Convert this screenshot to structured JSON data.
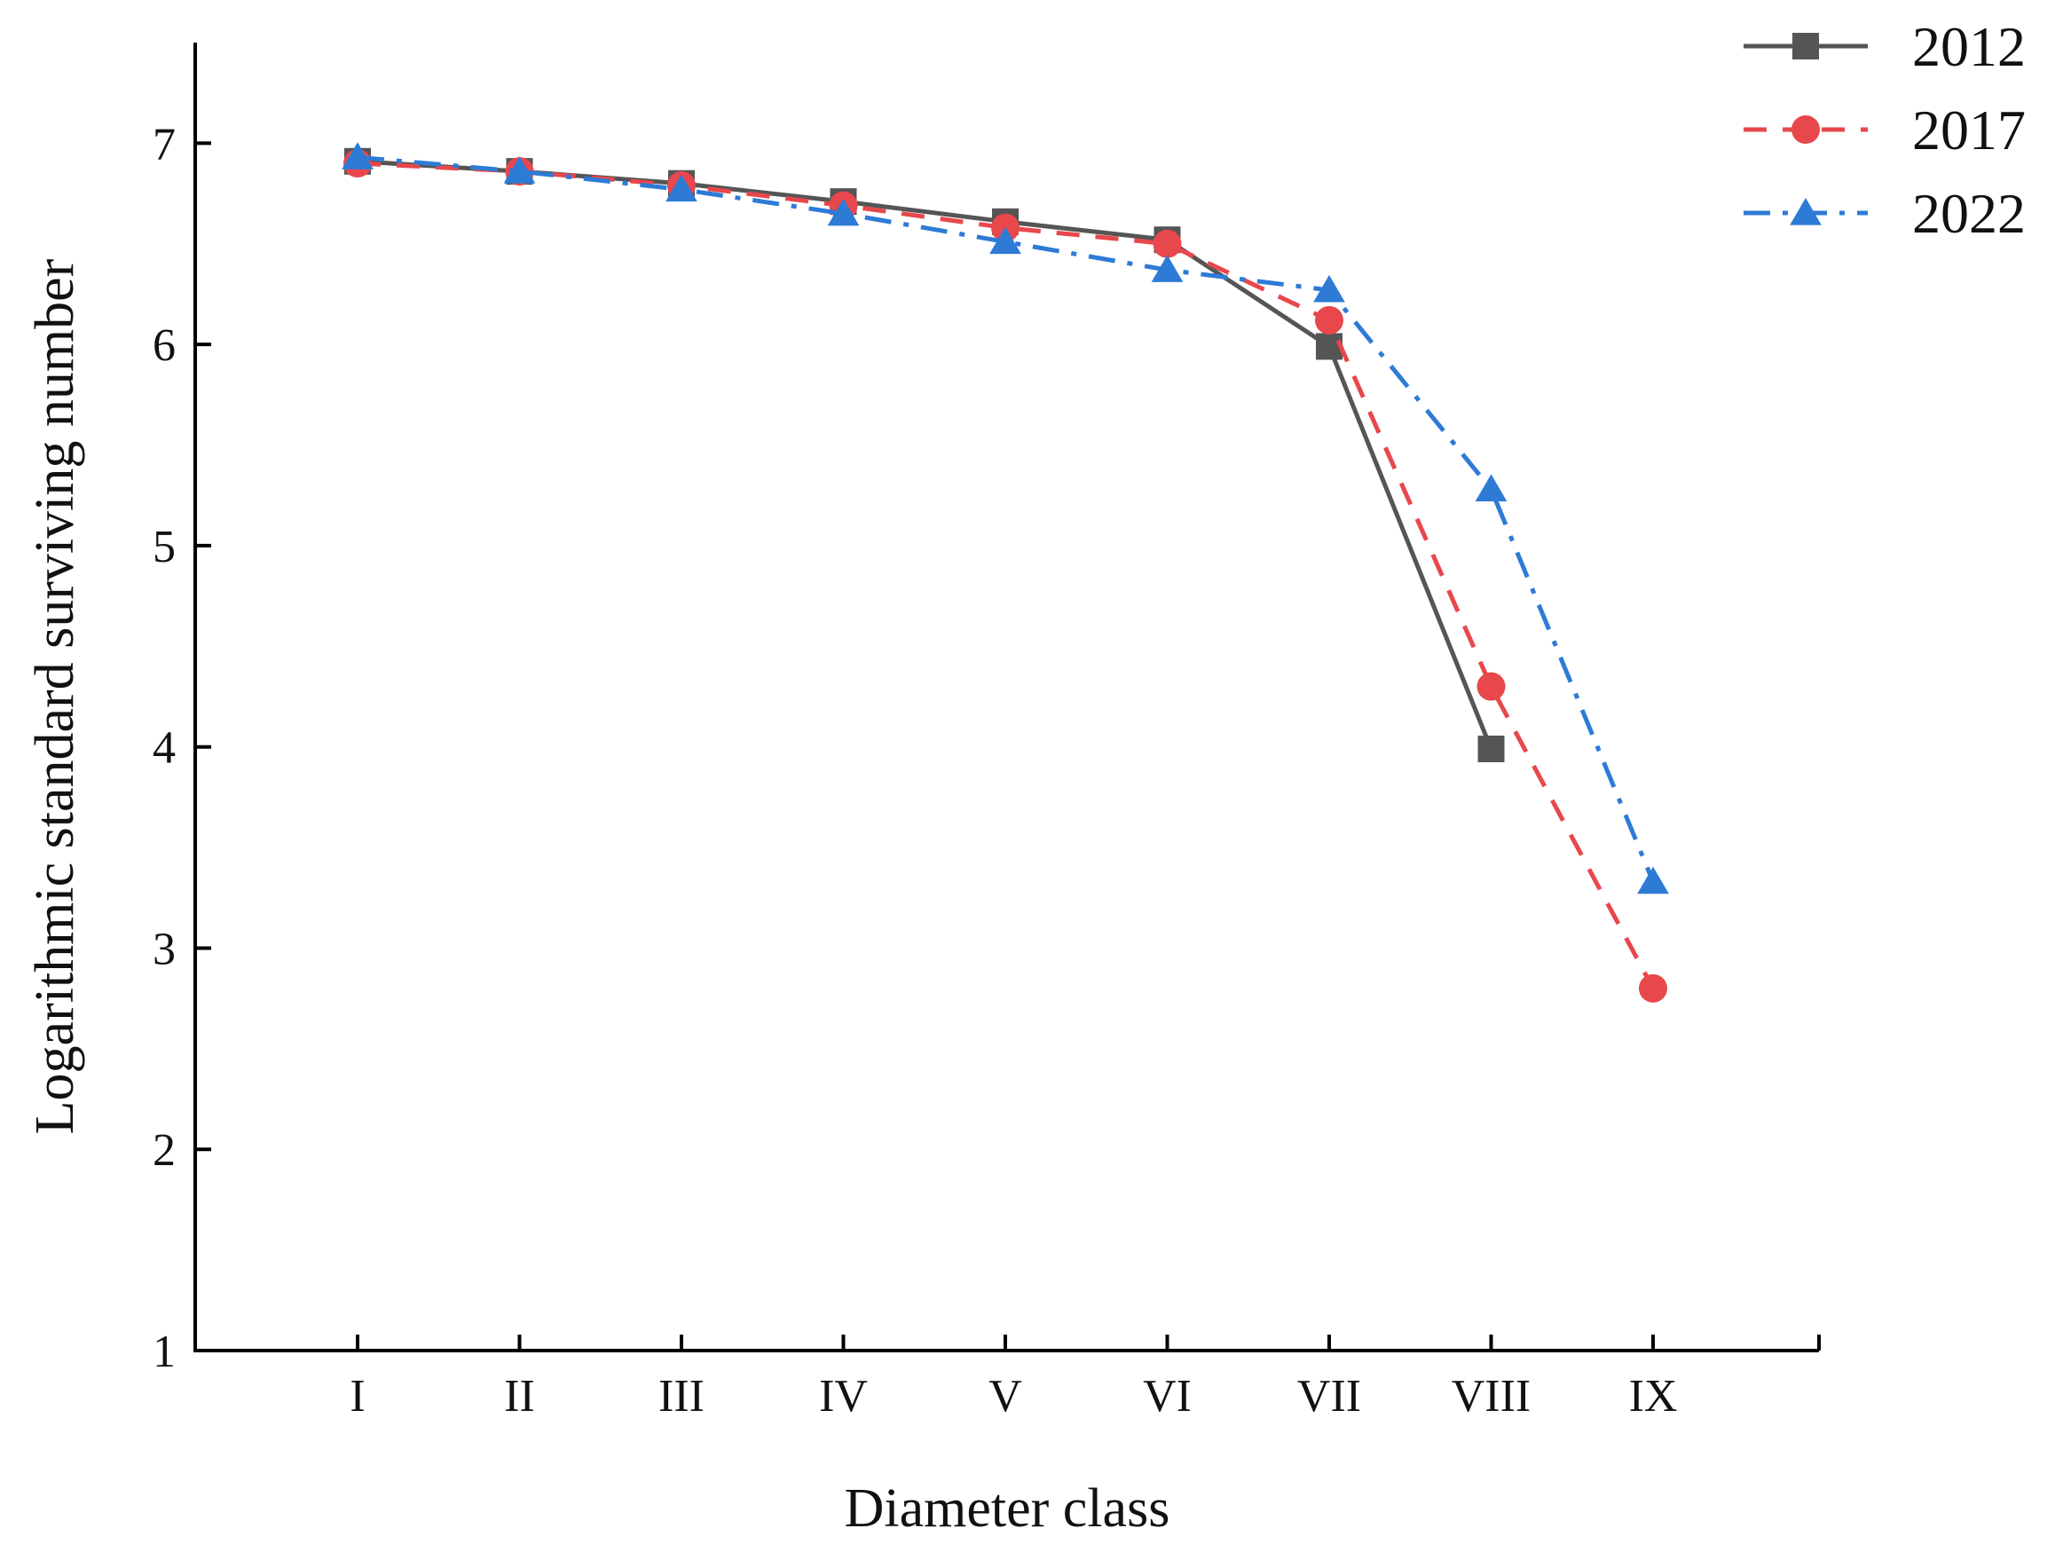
{
  "chart_data": {
    "type": "line",
    "title": "",
    "xlabel": "Diameter class",
    "ylabel": "Logarithmic standard surviving number",
    "categories": [
      "I",
      "II",
      "III",
      "IV",
      "V",
      "VI",
      "VII",
      "VIII",
      "IX"
    ],
    "ylim": [
      1,
      7.5
    ],
    "yticks": [
      1,
      2,
      3,
      4,
      5,
      6,
      7
    ],
    "grid": false,
    "legend_position": "top-right",
    "series": [
      {
        "name": "2012",
        "color": "#555555",
        "dash": "solid",
        "marker": "square",
        "values": [
          6.91,
          6.86,
          6.8,
          6.71,
          6.61,
          6.52,
          5.99,
          3.99,
          null
        ]
      },
      {
        "name": "2017",
        "color": "#e8474c",
        "dash": "dash",
        "marker": "circle",
        "values": [
          6.9,
          6.86,
          6.79,
          6.69,
          6.58,
          6.5,
          6.12,
          4.3,
          2.8
        ]
      },
      {
        "name": "2022",
        "color": "#2e7bd6",
        "dash": "dashdot",
        "marker": "triangle",
        "values": [
          6.93,
          6.86,
          6.77,
          6.65,
          6.51,
          6.37,
          6.27,
          5.28,
          3.33
        ]
      }
    ]
  }
}
